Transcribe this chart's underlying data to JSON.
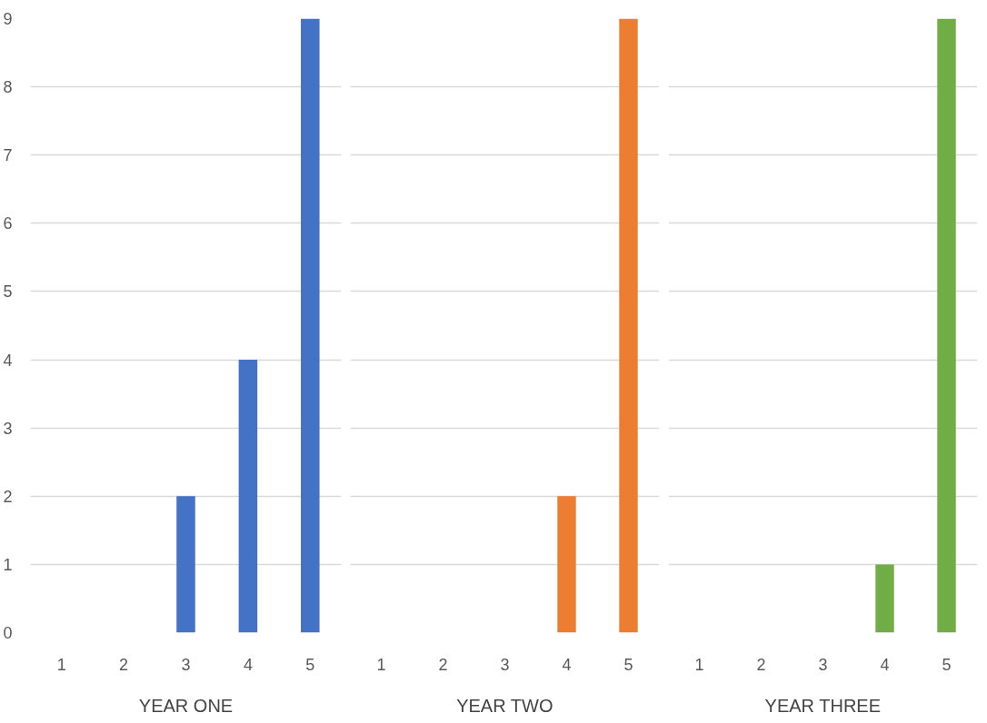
{
  "chart_data": [
    {
      "type": "bar",
      "categories": [
        "1",
        "2",
        "3",
        "4",
        "5"
      ],
      "values": [
        0,
        0,
        2,
        4,
        9
      ],
      "color": "#4472c4",
      "xlabel": "YEAR ONE",
      "ylim": [
        0,
        9
      ],
      "yticks": [
        0,
        1,
        2,
        3,
        4,
        5,
        6,
        7,
        8,
        9
      ],
      "grid": "y"
    },
    {
      "type": "bar",
      "categories": [
        "1",
        "2",
        "3",
        "4",
        "5"
      ],
      "values": [
        0,
        0,
        0,
        2,
        9
      ],
      "color": "#ed7d31",
      "xlabel": "YEAR TWO",
      "ylim": [
        0,
        9
      ],
      "yticks": [
        0,
        1,
        2,
        3,
        4,
        5,
        6,
        7,
        8,
        9
      ],
      "grid": "y",
      "tick_labels": "x"
    },
    {
      "type": "bar",
      "categories": [
        "1",
        "2",
        "3",
        "4",
        "5"
      ],
      "values": [
        0,
        0,
        0,
        1,
        9
      ],
      "color": "#70ad47",
      "xlabel": "YEAR THREE",
      "ylim": [
        0,
        9
      ],
      "yticks": [
        0,
        1,
        2,
        3,
        4,
        5,
        6,
        7,
        8,
        9
      ],
      "grid": "y",
      "tick_labels": "x"
    }
  ]
}
